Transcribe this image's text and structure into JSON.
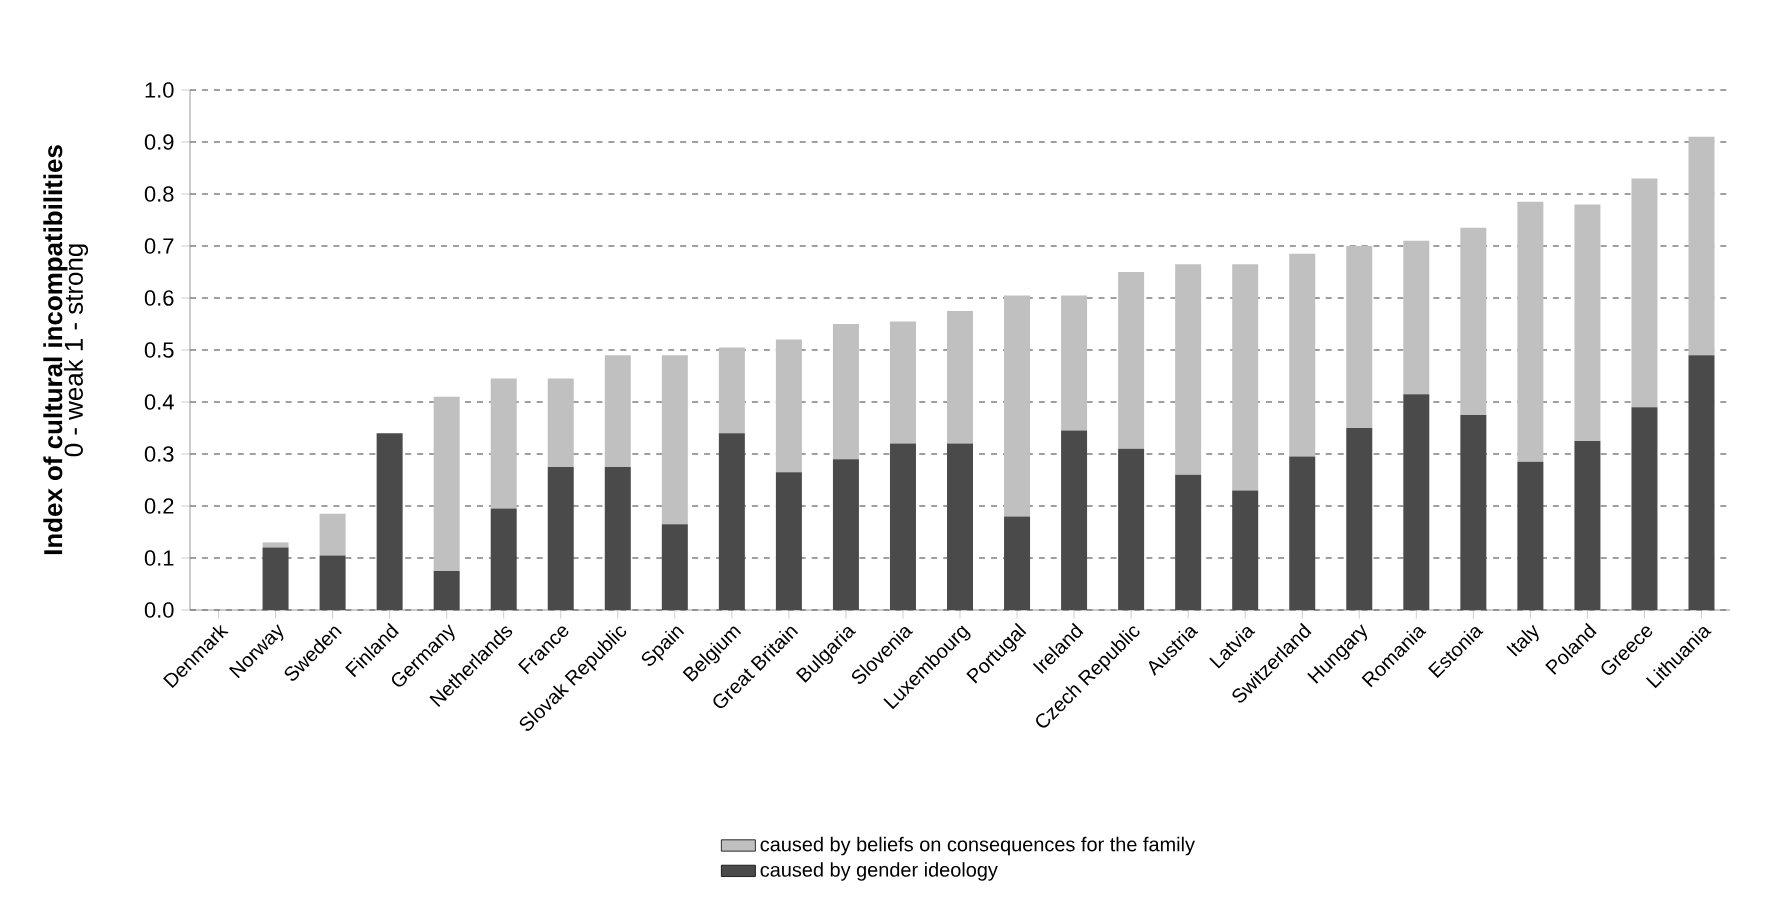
{
  "chart_data": {
    "type": "bar",
    "stacked": true,
    "ylabel": "Index of cultural incompatibilities",
    "annotations": [
      "0 - weak 1 - strong"
    ],
    "categories": [
      "Denmark",
      "Norway",
      "Sweden",
      "Finland",
      "Germany",
      "Netherlands",
      "France",
      "Slovak Republic",
      "Spain",
      "Belgium",
      "Great Britain",
      "Bulgaria",
      "Slovenia",
      "Luxembourg",
      "Portugal",
      "Ireland",
      "Czech Republic",
      "Austria",
      "Latvia",
      "Switzerland",
      "Hungary",
      "Romania",
      "Estonia",
      "Italy",
      "Poland",
      "Greece",
      "Lithuania"
    ],
    "series": [
      {
        "name": "caused by gender ideology",
        "color": "#4a4a4a",
        "values": [
          0,
          0.12,
          0.105,
          0.34,
          0.075,
          0.195,
          0.275,
          0.275,
          0.165,
          0.34,
          0.265,
          0.29,
          0.32,
          0.32,
          0.18,
          0.345,
          0.31,
          0.26,
          0.23,
          0.295,
          0.35,
          0.415,
          0.375,
          0.285,
          0.325,
          0.39,
          0.49
        ]
      },
      {
        "name": "caused by beliefs on consequences for the family",
        "color": "#c0c0c0",
        "values": [
          0,
          0.01,
          0.08,
          0,
          0.335,
          0.25,
          0.17,
          0.215,
          0.325,
          0.165,
          0.255,
          0.26,
          0.235,
          0.255,
          0.425,
          0.26,
          0.34,
          0.405,
          0.435,
          0.39,
          0.35,
          0.295,
          0.36,
          0.5,
          0.455,
          0.44,
          0.42
        ]
      }
    ],
    "ylim": [
      0,
      1.0
    ],
    "yticks": [
      {
        "value": 0,
        "label": "0.0"
      },
      {
        "value": 0.1,
        "label": "0.1"
      },
      {
        "value": 0.2,
        "label": "0.2"
      },
      {
        "value": 0.3,
        "label": "0.3"
      },
      {
        "value": 0.4,
        "label": "0.4"
      },
      {
        "value": 0.5,
        "label": "0.5"
      },
      {
        "value": 0.6,
        "label": "0.6"
      },
      {
        "value": 0.7,
        "label": "0.7"
      },
      {
        "value": 0.8,
        "label": "0.8"
      },
      {
        "value": 0.9,
        "label": "0.9"
      },
      {
        "value": 1.0,
        "label": "1.0"
      }
    ],
    "grid": "y",
    "legend": "bottom"
  }
}
